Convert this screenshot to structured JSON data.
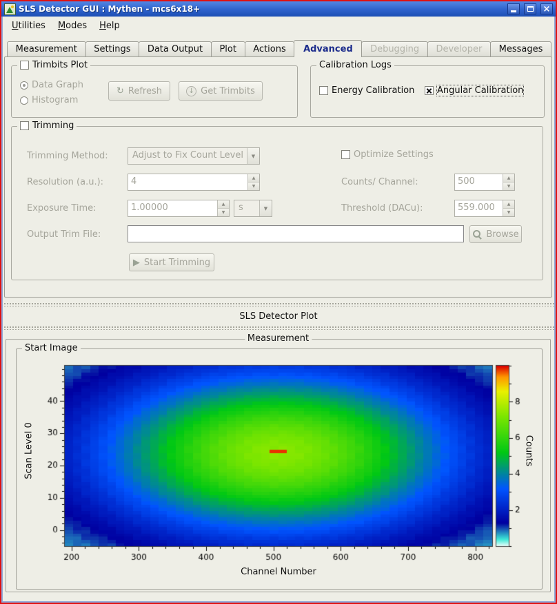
{
  "window": {
    "title": "SLS Detector GUI : Mythen - mcs6x18+"
  },
  "icons": {
    "refresh": "↻",
    "get_trimbits": "↓",
    "start": "▶",
    "combo_arrow": "▼",
    "spin_up": "▲",
    "spin_down": "▼",
    "close": "×"
  },
  "menubar": {
    "items": [
      {
        "accel": "U",
        "rest": "tilities"
      },
      {
        "accel": "M",
        "rest": "odes"
      },
      {
        "accel": "H",
        "rest": "elp"
      }
    ]
  },
  "tabs": [
    {
      "label": "Measurement",
      "state": "normal"
    },
    {
      "label": "Settings",
      "state": "normal"
    },
    {
      "label": "Data Output",
      "state": "normal"
    },
    {
      "label": "Plot",
      "state": "normal"
    },
    {
      "label": "Actions",
      "state": "normal"
    },
    {
      "label": "Advanced",
      "state": "selected"
    },
    {
      "label": "Debugging",
      "state": "disabled"
    },
    {
      "label": "Developer",
      "state": "disabled"
    },
    {
      "label": "Messages",
      "state": "normal"
    }
  ],
  "advanced": {
    "trimbits_plot": {
      "title": "Trimbits Plot",
      "checked": false,
      "radio_data_graph": "Data Graph",
      "radio_histogram": "Histogram",
      "data_graph_selected": true,
      "refresh_label": "Refresh",
      "get_trimbits_label": "Get Trimbits"
    },
    "calibration_logs": {
      "title": "Calibration Logs",
      "energy_label": "Energy Calibration",
      "energy_checked": false,
      "angular_label": "Angular Calibration",
      "angular_checked": true
    },
    "trimming": {
      "title": "Trimming",
      "checked": false,
      "method_label": "Trimming Method:",
      "method_value": "Adjust to Fix Count Level",
      "optimize_label": "Optimize Settings",
      "resolution_label": "Resolution (a.u.):",
      "resolution_value": "4",
      "counts_label": "Counts/ Channel:",
      "counts_value": "500",
      "exposure_label": "Exposure Time:",
      "exposure_value": "1.00000",
      "exposure_unit": "s",
      "threshold_label": "Threshold (DACu):",
      "threshold_value": "559.000",
      "output_label": "Output Trim File:",
      "output_value": "",
      "browse_label": "Browse",
      "start_label": "Start Trimming"
    }
  },
  "plot_dock": {
    "title": "SLS Detector Plot"
  },
  "measurement": {
    "title": "Measurement",
    "start_image_title": "Start Image"
  },
  "chart_data": {
    "type": "heatmap",
    "title": "",
    "xlabel": "Channel Number",
    "ylabel": "Scan Level 0",
    "colorbar_label": "Counts",
    "x_range": [
      190,
      825
    ],
    "y_range": [
      -5,
      51
    ],
    "value_range": [
      0,
      10
    ],
    "x_ticks": [
      200,
      300,
      400,
      500,
      600,
      700,
      800
    ],
    "x_minor_step": 20,
    "y_ticks": [
      0,
      10,
      20,
      30,
      40
    ],
    "y_minor_step": 2,
    "colorbar_ticks": [
      2,
      4,
      6,
      8
    ],
    "colorbar_minor_step": 1,
    "grid": false,
    "n_cols": 50,
    "n_rows": 56,
    "field": {
      "base": 0.25,
      "amplitude": 7.1,
      "center_channel": 507,
      "center_level": 24,
      "sigma_channel": 190,
      "sigma_level": 18
    },
    "hot_spot": {
      "channel_min": 492,
      "channel_max": 518,
      "level": 24,
      "value": 9.8
    },
    "colormap": [
      [
        0.0,
        "#f2fffc"
      ],
      [
        0.04,
        "#3ce8d6"
      ],
      [
        0.13,
        "#0000a0"
      ],
      [
        0.32,
        "#0055ff"
      ],
      [
        0.52,
        "#00c814"
      ],
      [
        0.72,
        "#7ce600"
      ],
      [
        0.86,
        "#eaf000"
      ],
      [
        0.94,
        "#ff9600"
      ],
      [
        1.0,
        "#dc0000"
      ]
    ]
  }
}
